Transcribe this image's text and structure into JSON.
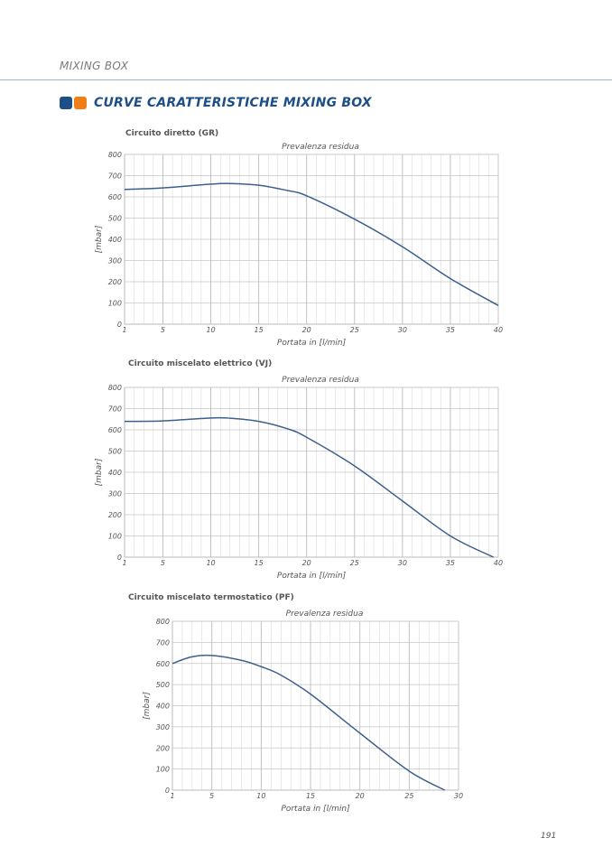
{
  "header": {
    "title": "MIXING BOX"
  },
  "section": {
    "title": "CURVE CARATTERISTICHE MIXING BOX"
  },
  "colors": {
    "accent_blue": "#1d4f86",
    "accent_orange": "#f07d17",
    "curve": "#3d5f8c",
    "grid": "#d4d4d4"
  },
  "page": {
    "number": "191"
  },
  "chart_data": [
    {
      "type": "line",
      "label": "Circuito diretto (GR)",
      "title": "Prevalenza residua",
      "xlabel": "Portata in [l/min]",
      "ylabel": "[mbar]",
      "xlim": [
        1,
        40
      ],
      "ylim": [
        0,
        800
      ],
      "xticks": [
        1,
        5,
        10,
        15,
        20,
        25,
        30,
        35,
        40
      ],
      "yticks": [
        0,
        100,
        200,
        300,
        400,
        500,
        600,
        700,
        800
      ],
      "grid": true,
      "series": [
        {
          "x": [
            1,
            5,
            10,
            12,
            15,
            18,
            20,
            25,
            30,
            35,
            40
          ],
          "y": [
            635,
            642,
            660,
            663,
            655,
            630,
            605,
            495,
            365,
            215,
            88
          ]
        }
      ]
    },
    {
      "type": "line",
      "label": "Circuito miscelato elettrico (VJ)",
      "title": "Prevalenza residua",
      "xlabel": "Portata in [l/min]",
      "ylabel": "[mbar]",
      "xlim": [
        1,
        40
      ],
      "ylim": [
        0,
        800
      ],
      "xticks": [
        1,
        5,
        10,
        15,
        20,
        25,
        30,
        35,
        40
      ],
      "yticks": [
        0,
        100,
        200,
        300,
        400,
        500,
        600,
        700,
        800
      ],
      "grid": true,
      "series": [
        {
          "x": [
            1,
            5,
            10,
            12,
            15,
            18,
            20,
            25,
            30,
            35,
            39.5
          ],
          "y": [
            640,
            642,
            656,
            655,
            640,
            605,
            565,
            430,
            265,
            100,
            0
          ]
        }
      ]
    },
    {
      "type": "line",
      "label": "Circuito miscelato termostatico (PF)",
      "title": "Prevalenza residua",
      "xlabel": "Portata in [l/min]",
      "ylabel": "[mbar]",
      "xlim": [
        1,
        30
      ],
      "ylim": [
        0,
        800
      ],
      "xticks": [
        1,
        5,
        10,
        15,
        20,
        25,
        30
      ],
      "yticks": [
        0,
        100,
        200,
        300,
        400,
        500,
        600,
        700,
        800
      ],
      "grid": true,
      "series": [
        {
          "x": [
            1,
            3,
            5,
            8,
            10,
            12,
            15,
            20,
            25,
            28.6
          ],
          "y": [
            600,
            632,
            638,
            615,
            585,
            545,
            455,
            270,
            90,
            0
          ]
        }
      ]
    }
  ]
}
